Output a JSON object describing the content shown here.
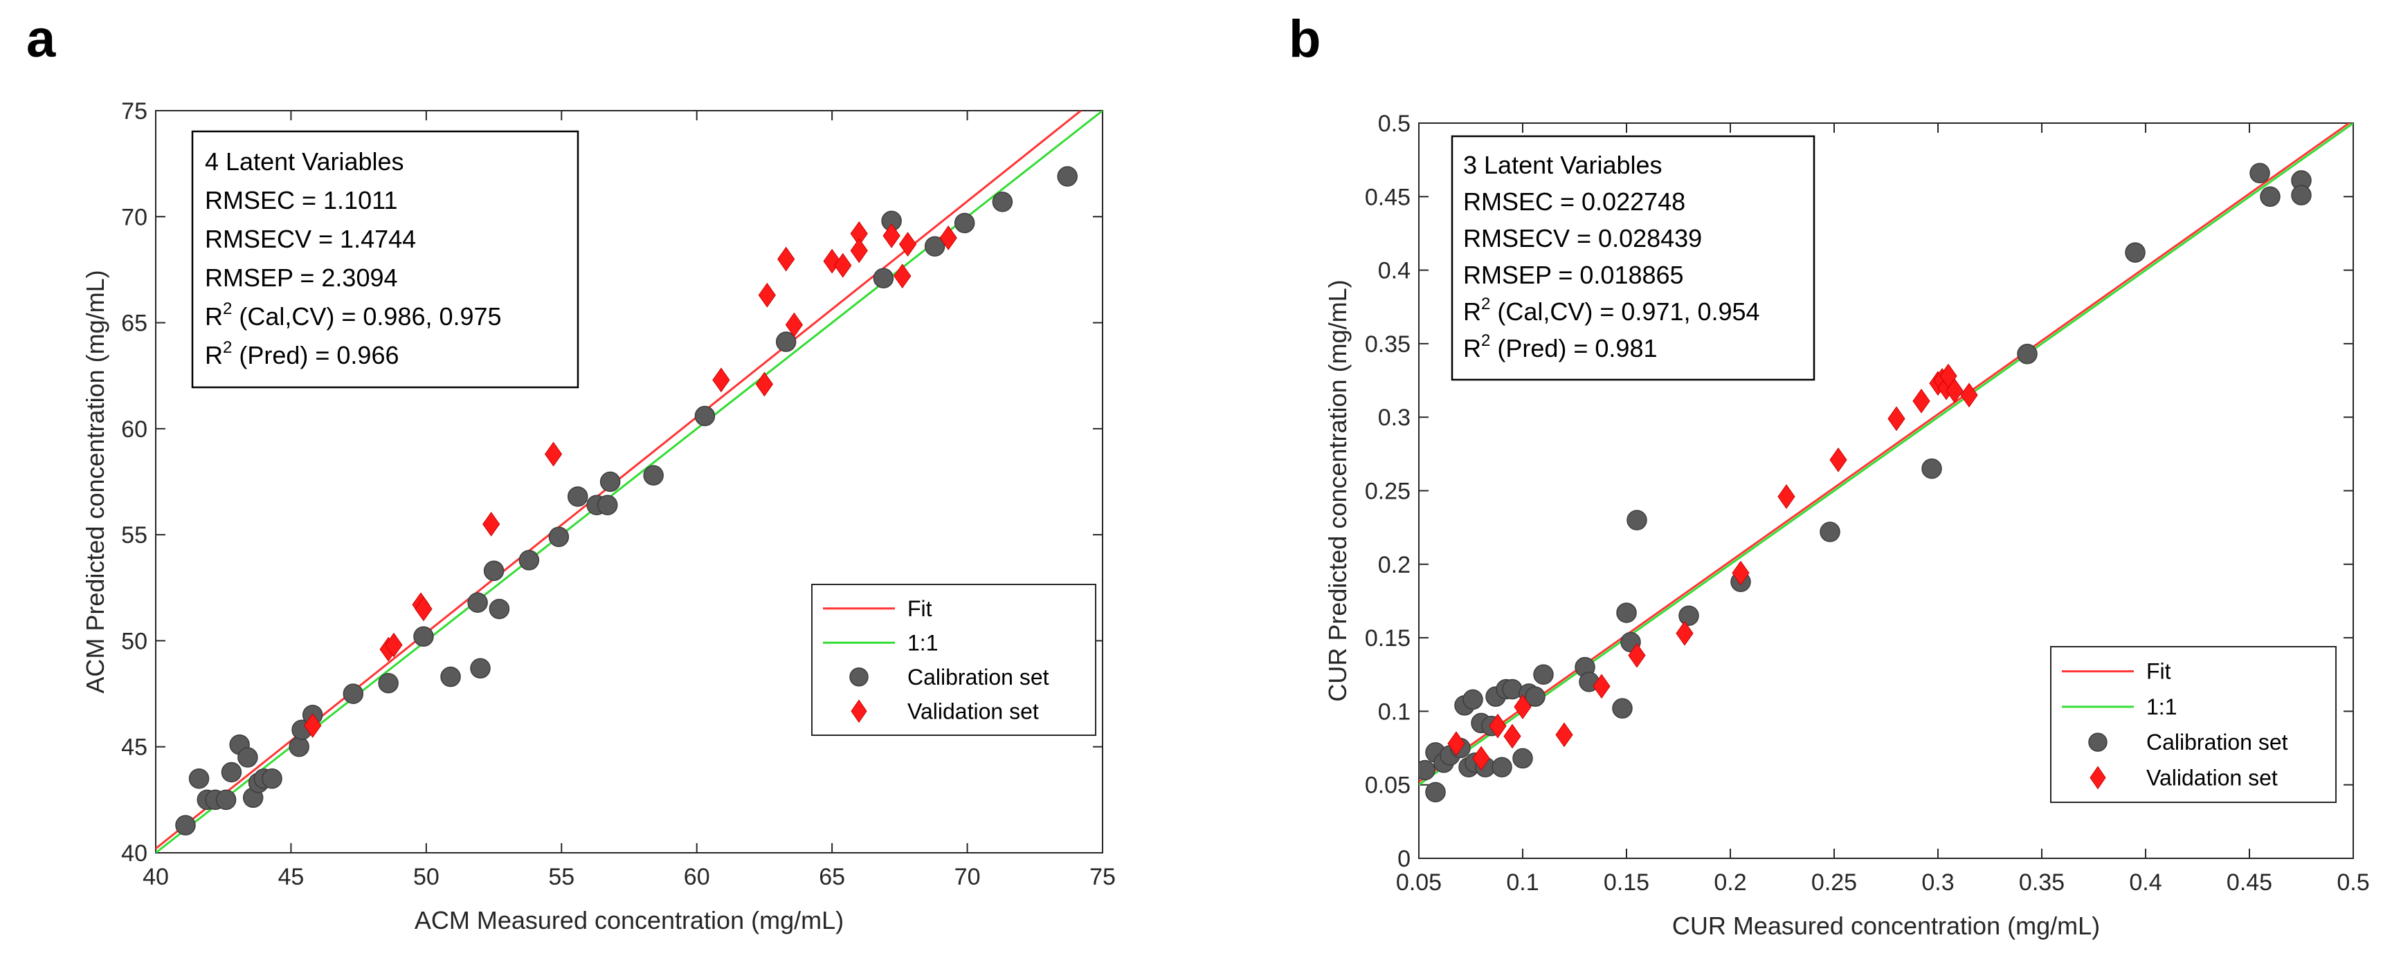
{
  "chart_data": [
    {
      "panel": "a",
      "type": "scatter",
      "title": "",
      "xlabel": "ACM Measured concentration (mg/mL)",
      "ylabel": "ACM Predicted concentration (mg/mL)",
      "xlim": [
        40,
        75
      ],
      "ylim": [
        40,
        75
      ],
      "xticks": [
        40,
        45,
        50,
        55,
        60,
        65,
        70,
        75
      ],
      "yticks": [
        40,
        45,
        50,
        55,
        60,
        65,
        70,
        75
      ],
      "xtick_labels": [
        "40",
        "45",
        "50",
        "55",
        "60",
        "65",
        "70",
        "75"
      ],
      "ytick_labels": [
        "40",
        "45",
        "50",
        "55",
        "60",
        "65",
        "70",
        "75"
      ],
      "grid": false,
      "legend_placement": "bottom-right",
      "annotation": {
        "lines": [
          {
            "text": "4 Latent Variables"
          },
          {
            "text": "RMSEC = 1.1011"
          },
          {
            "text": "RMSECV = 1.4744"
          },
          {
            "text": "RMSEP = 2.3094"
          },
          {
            "prefix": "R",
            "sup": "2",
            "text": " (Cal,CV) = 0.986, 0.975"
          },
          {
            "prefix": "R",
            "sup": "2",
            "text": " (Pred) = 0.966"
          }
        ]
      },
      "series": [
        {
          "name": "Fit",
          "kind": "line",
          "color": "#ff3333",
          "x": [
            40,
            74.2
          ],
          "y": [
            40.2,
            75
          ]
        },
        {
          "name": "1:1",
          "kind": "line",
          "color": "#33dd33",
          "x": [
            40,
            75
          ],
          "y": [
            40,
            75
          ]
        },
        {
          "name": "Calibration set",
          "kind": "scatter",
          "marker": "circle",
          "color": "#5a5a5a",
          "x": [
            41.1,
            41.6,
            41.9,
            42.2,
            42.6,
            42.8,
            43.1,
            43.4,
            43.6,
            43.8,
            44.0,
            44.3,
            45.3,
            45.4,
            45.8,
            47.3,
            48.6,
            49.9,
            50.9,
            51.9,
            52.0,
            52.5,
            52.7,
            53.8,
            54.9,
            55.6,
            56.3,
            56.8,
            56.7,
            58.4,
            60.3,
            63.3,
            66.9,
            67.2,
            68.8,
            69.9,
            71.3,
            73.7
          ],
          "y": [
            41.3,
            43.5,
            42.5,
            42.5,
            42.5,
            43.8,
            45.1,
            44.5,
            42.6,
            43.3,
            43.5,
            43.5,
            45.0,
            45.8,
            46.5,
            47.5,
            48.0,
            50.2,
            48.3,
            51.8,
            48.7,
            53.3,
            51.5,
            53.8,
            54.9,
            56.8,
            56.4,
            57.5,
            56.4,
            57.8,
            60.6,
            64.1,
            67.1,
            69.8,
            68.6,
            69.7,
            70.7,
            71.9
          ]
        },
        {
          "name": "Validation set",
          "kind": "scatter",
          "marker": "diamond",
          "color": "#ff1a1a",
          "x": [
            45.8,
            48.6,
            48.8,
            49.8,
            49.9,
            52.4,
            54.7,
            60.9,
            62.5,
            62.6,
            63.3,
            63.6,
            65.0,
            65.4,
            66.0,
            66.0,
            67.2,
            67.6,
            67.8,
            69.3
          ],
          "y": [
            46.0,
            49.6,
            49.8,
            51.7,
            51.5,
            55.5,
            58.8,
            62.3,
            62.1,
            66.3,
            68.0,
            64.9,
            67.9,
            67.7,
            69.2,
            68.4,
            69.1,
            67.2,
            68.7,
            69.0
          ]
        }
      ]
    },
    {
      "panel": "b",
      "type": "scatter",
      "title": "",
      "xlabel": "CUR Measured concentration (mg/mL)",
      "ylabel": "CUR Predicted concentration (mg/mL)",
      "xlim": [
        0.05,
        0.5
      ],
      "ylim": [
        0,
        0.5
      ],
      "xticks": [
        0.05,
        0.1,
        0.15,
        0.2,
        0.25,
        0.3,
        0.35,
        0.4,
        0.45,
        0.5
      ],
      "yticks": [
        0,
        0.05,
        0.1,
        0.15,
        0.2,
        0.25,
        0.3,
        0.35,
        0.4,
        0.45,
        0.5
      ],
      "xtick_labels": [
        "0.05",
        "0.1",
        "0.15",
        "0.2",
        "0.25",
        "0.3",
        "0.35",
        "0.4",
        "0.45",
        "0.5"
      ],
      "ytick_labels": [
        "0",
        "0.05",
        "0.1",
        "0.15",
        "0.2",
        "0.25",
        "0.3",
        "0.35",
        "0.4",
        "0.45",
        "0.5"
      ],
      "grid": false,
      "legend_placement": "bottom-right",
      "annotation": {
        "lines": [
          {
            "text": "3 Latent Variables"
          },
          {
            "text": "RMSEC = 0.022748"
          },
          {
            "text": "RMSECV = 0.028439"
          },
          {
            "text": "RMSEP = 0.018865"
          },
          {
            "prefix": "R",
            "sup": "2",
            "text": " (Cal,CV) = 0.971, 0.954"
          },
          {
            "prefix": "R",
            "sup": "2",
            "text": " (Pred) = 0.981"
          }
        ]
      },
      "series": [
        {
          "name": "Fit",
          "kind": "line",
          "color": "#ff3333",
          "x": [
            0.05,
            0.5
          ],
          "y": [
            0.052,
            0.502
          ]
        },
        {
          "name": "1:1",
          "kind": "line",
          "color": "#33dd33",
          "x": [
            0.05,
            0.5
          ],
          "y": [
            0.05,
            0.5
          ]
        },
        {
          "name": "Calibration set",
          "kind": "scatter",
          "marker": "circle",
          "color": "#5a5a5a",
          "x": [
            0.053,
            0.058,
            0.058,
            0.062,
            0.065,
            0.07,
            0.072,
            0.074,
            0.076,
            0.077,
            0.08,
            0.082,
            0.085,
            0.087,
            0.09,
            0.092,
            0.095,
            0.1,
            0.103,
            0.106,
            0.11,
            0.13,
            0.132,
            0.148,
            0.15,
            0.152,
            0.155,
            0.18,
            0.205,
            0.248,
            0.297,
            0.343,
            0.395,
            0.455,
            0.46,
            0.475,
            0.475
          ],
          "y": [
            0.06,
            0.045,
            0.072,
            0.065,
            0.07,
            0.075,
            0.104,
            0.062,
            0.108,
            0.065,
            0.092,
            0.062,
            0.09,
            0.11,
            0.062,
            0.115,
            0.115,
            0.068,
            0.112,
            0.11,
            0.125,
            0.13,
            0.12,
            0.102,
            0.167,
            0.147,
            0.23,
            0.165,
            0.188,
            0.222,
            0.265,
            0.343,
            0.412,
            0.466,
            0.45,
            0.461,
            0.451
          ]
        },
        {
          "name": "Validation set",
          "kind": "scatter",
          "marker": "diamond",
          "color": "#ff1a1a",
          "x": [
            0.068,
            0.08,
            0.088,
            0.095,
            0.1,
            0.12,
            0.138,
            0.155,
            0.178,
            0.205,
            0.227,
            0.252,
            0.28,
            0.292,
            0.3,
            0.302,
            0.304,
            0.305,
            0.308,
            0.315
          ],
          "y": [
            0.078,
            0.068,
            0.09,
            0.083,
            0.103,
            0.084,
            0.117,
            0.138,
            0.153,
            0.194,
            0.246,
            0.271,
            0.299,
            0.311,
            0.323,
            0.325,
            0.32,
            0.328,
            0.318,
            0.315
          ]
        }
      ]
    }
  ]
}
